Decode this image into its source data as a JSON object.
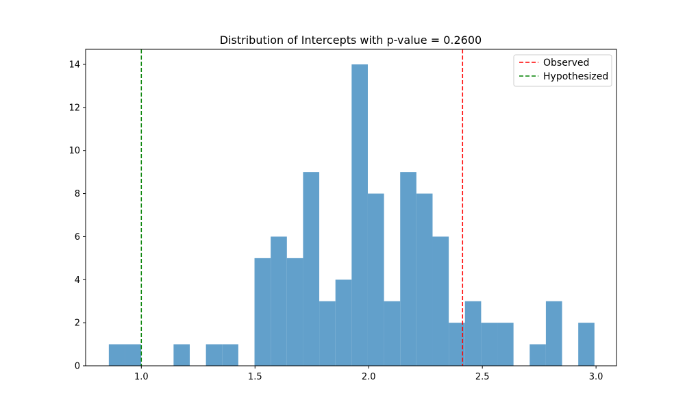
{
  "chart_data": {
    "type": "bar",
    "title": "Distribution of Intercepts with p-value = 0.2600",
    "xlabel": "",
    "ylabel": "",
    "xlim": [
      0.755,
      3.09
    ],
    "ylim": [
      0,
      14.7
    ],
    "x_ticks": [
      1.0,
      1.5,
      2.0,
      2.5,
      3.0
    ],
    "x_tick_labels": [
      "1.0",
      "1.5",
      "2.0",
      "2.5",
      "3.0"
    ],
    "y_ticks": [
      0,
      2,
      4,
      6,
      8,
      10,
      12,
      14
    ],
    "y_tick_labels": [
      "0",
      "2",
      "4",
      "6",
      "8",
      "10",
      "12",
      "14"
    ],
    "bin_start": 0.857,
    "bin_width": 0.0712,
    "counts": [
      1,
      1,
      0,
      0,
      1,
      0,
      1,
      1,
      0,
      5,
      6,
      5,
      9,
      3,
      4,
      14,
      8,
      3,
      9,
      8,
      6,
      2,
      3,
      2,
      2,
      0,
      1,
      3,
      0,
      2
    ],
    "bar_color": "#62a0cb",
    "observed": 2.413,
    "hypothesized": 1.0,
    "observed_color": "#ff0000",
    "hypothesized_color": "#008000",
    "legend": {
      "position": "upper right",
      "entries": [
        {
          "label": "Observed",
          "color": "#ff0000",
          "style": "dashed"
        },
        {
          "label": "Hypothesized",
          "color": "#008000",
          "style": "dashed"
        }
      ]
    },
    "grid": false
  }
}
